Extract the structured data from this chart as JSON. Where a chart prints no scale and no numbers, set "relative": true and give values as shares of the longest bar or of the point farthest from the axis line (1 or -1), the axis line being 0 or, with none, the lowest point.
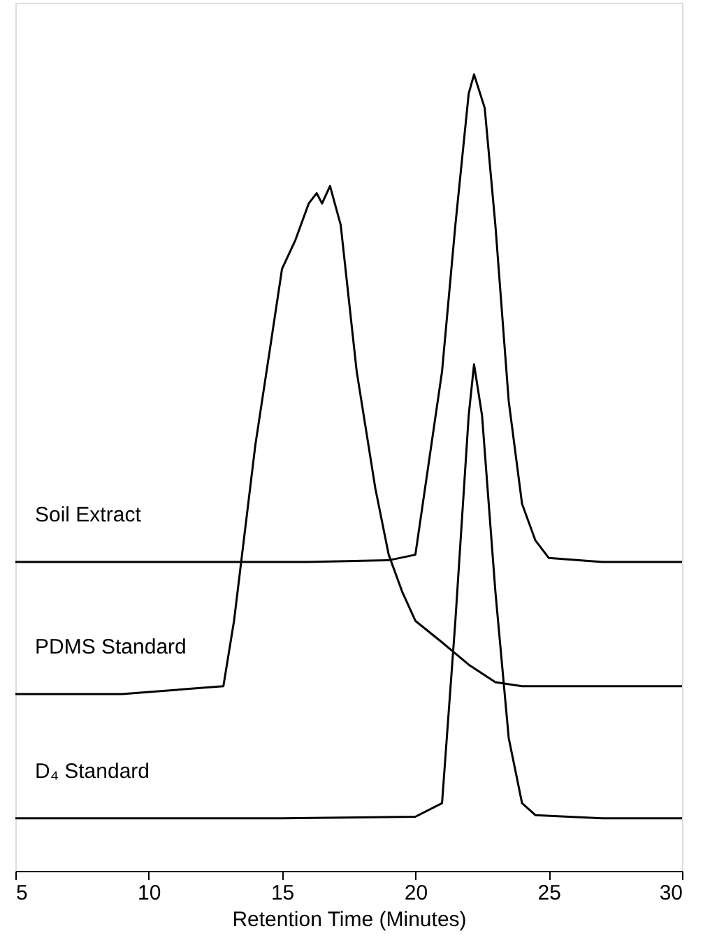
{
  "chart_data": {
    "type": "line",
    "relative": true,
    "xlabel": "Retention Time (Minutes)",
    "xlim": [
      5,
      30
    ],
    "xticks": [
      5,
      10,
      15,
      20,
      25,
      30
    ],
    "legend": false,
    "grid": false,
    "marker": "none",
    "line_style": "solid",
    "series": [
      {
        "name": "Soil Extract",
        "color": "#000000",
        "x": [
          5,
          8,
          12,
          16,
          19,
          20,
          21,
          21.5,
          22,
          22.2,
          22.6,
          23,
          23.5,
          24,
          24.5,
          25,
          27,
          30
        ],
        "values": [
          0.388,
          0.388,
          0.388,
          0.388,
          0.39,
          0.397,
          0.627,
          0.811,
          0.976,
          1.0,
          0.958,
          0.811,
          0.59,
          0.461,
          0.415,
          0.393,
          0.388,
          0.388
        ]
      },
      {
        "name": "PDMS Standard",
        "color": "#000000",
        "x": [
          5,
          9,
          12.8,
          13.2,
          14,
          14.5,
          15,
          15.5,
          16,
          16.3,
          16.5,
          16.8,
          17.2,
          17.8,
          18.5,
          19,
          19.5,
          20,
          21,
          22,
          23,
          24,
          27,
          30
        ],
        "values": [
          0.222,
          0.222,
          0.232,
          0.314,
          0.535,
          0.645,
          0.756,
          0.792,
          0.838,
          0.851,
          0.838,
          0.86,
          0.811,
          0.627,
          0.48,
          0.397,
          0.351,
          0.314,
          0.287,
          0.259,
          0.237,
          0.232,
          0.232,
          0.232
        ]
      },
      {
        "name": "D₄ Standard",
        "color": "#000000",
        "x": [
          5,
          10,
          15,
          20,
          21,
          21.5,
          22,
          22.2,
          22.5,
          23,
          23.5,
          24,
          24.5,
          27,
          30
        ],
        "values": [
          0.066,
          0.066,
          0.066,
          0.068,
          0.085,
          0.314,
          0.572,
          0.636,
          0.572,
          0.351,
          0.167,
          0.085,
          0.07,
          0.066,
          0.066
        ]
      }
    ]
  }
}
